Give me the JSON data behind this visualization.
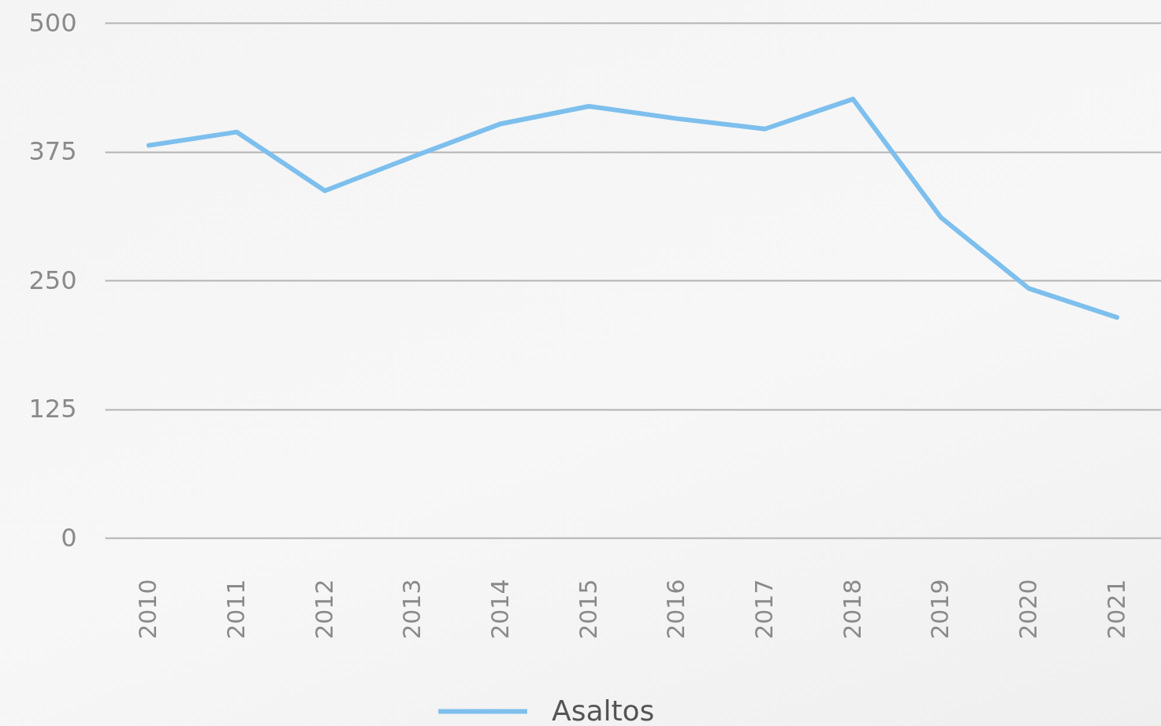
{
  "chart_data": {
    "type": "line",
    "categories": [
      "2010",
      "2011",
      "2012",
      "2013",
      "2014",
      "2015",
      "2016",
      "2017",
      "2018",
      "2019",
      "2020",
      "2021"
    ],
    "series": [
      {
        "name": "Asaltos",
        "color": "#7dbfed",
        "values": [
          381,
          394,
          337,
          370,
          402,
          419,
          407,
          397,
          426,
          311,
          242,
          214
        ]
      }
    ],
    "ylim": [
      0,
      500
    ],
    "yticks": [
      0,
      125,
      250,
      375,
      500
    ],
    "grid": "y",
    "legend": "bottom",
    "line_style": "solid"
  }
}
